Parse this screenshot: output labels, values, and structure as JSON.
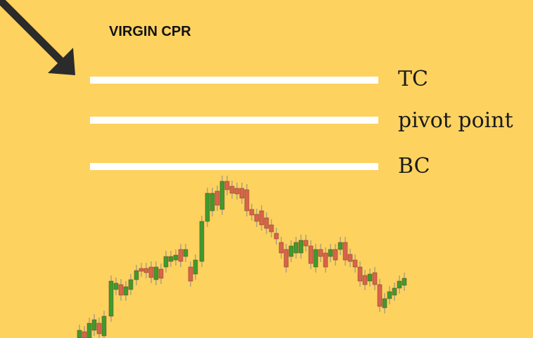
{
  "title": "VIRGIN CPR",
  "levels": [
    {
      "label": "TC"
    },
    {
      "label": "pivot point"
    },
    {
      "label": "BC"
    }
  ]
}
